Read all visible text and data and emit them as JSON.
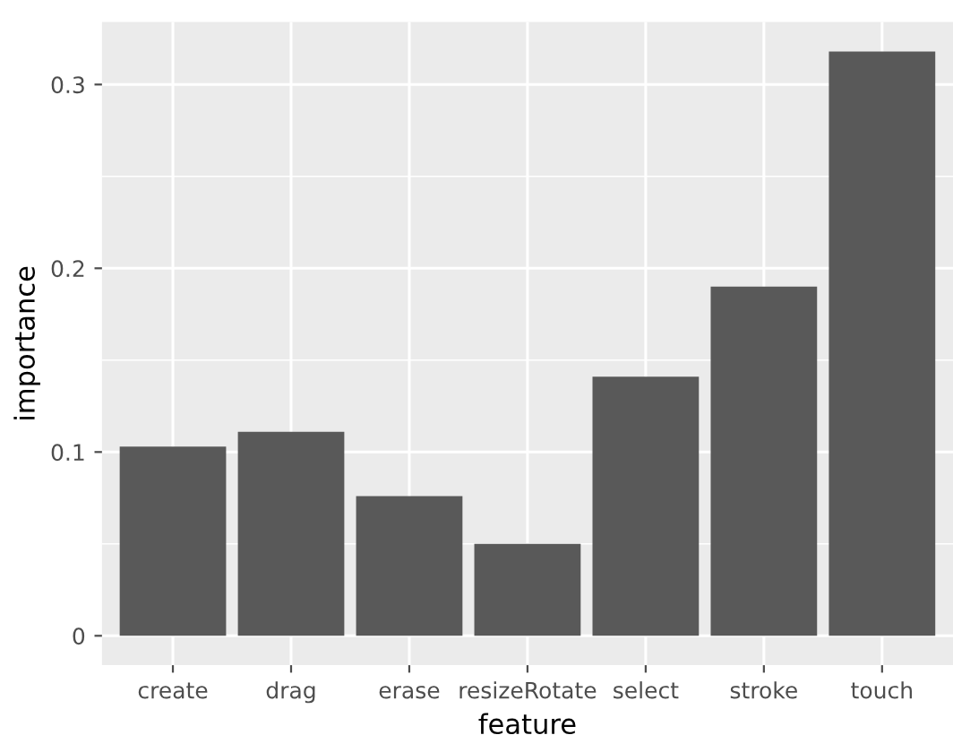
{
  "chart_data": {
    "type": "bar",
    "xlabel": "feature",
    "ylabel": "importance",
    "categories": [
      "create",
      "drag",
      "erase",
      "resizeRotate",
      "select",
      "stroke",
      "touch"
    ],
    "values": [
      0.103,
      0.111,
      0.076,
      0.05,
      0.141,
      0.19,
      0.318
    ],
    "color": "#595959",
    "ylim": [
      -0.016,
      0.334
    ],
    "yticks": [
      0,
      0.1,
      0.2,
      0.3
    ],
    "grid": true
  }
}
